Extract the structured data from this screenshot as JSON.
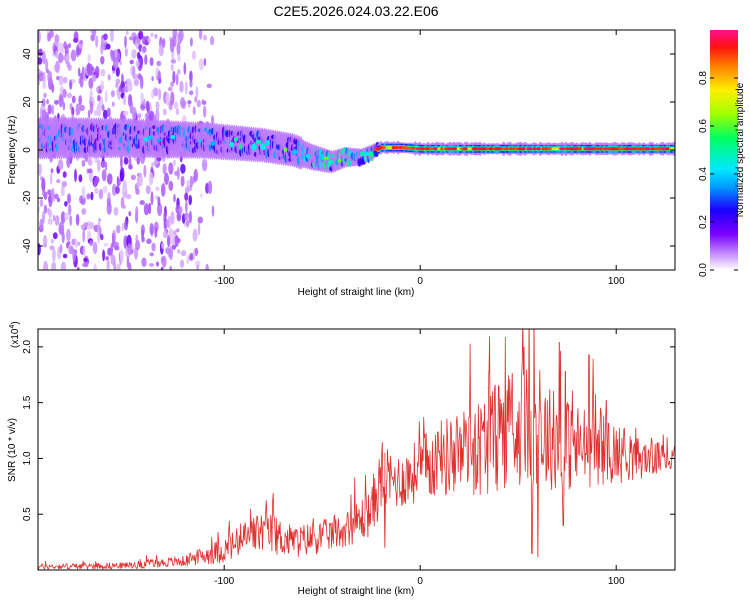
{
  "figure_title": "C2E5.2026.024.03.22.E06",
  "chart_data": [
    {
      "type": "heatmap",
      "title": "C2E5.2026.024.03.22.E06",
      "xlabel": "Height of straight line (km)",
      "ylabel": "Frequency (Hz)",
      "xlim": [
        -195,
        130
      ],
      "ylim": [
        -50,
        50
      ],
      "xticks": [
        -100,
        0,
        100
      ],
      "yticks": [
        -40,
        -20,
        0,
        20,
        40
      ],
      "colorbar": {
        "label": "Normalized spectral amplitude",
        "range": [
          0,
          1
        ],
        "ticks": [
          "0.0",
          "0.2",
          "0.4",
          "0.6",
          "0.8"
        ],
        "tick_values": [
          0.0,
          0.2,
          0.4,
          0.6,
          0.8
        ],
        "colors": [
          "#ffffff",
          "#cc99ff",
          "#7a00ff",
          "#1a00ff",
          "#00a0ff",
          "#00e8ff",
          "#00ff60",
          "#a0ff00",
          "#ffee00",
          "#ff8000",
          "#ff1010",
          "#ff1090"
        ]
      },
      "band_center_hz": [
        [
          -195,
          5
        ],
        [
          -150,
          5
        ],
        [
          -110,
          4
        ],
        [
          -80,
          2
        ],
        [
          -65,
          0
        ],
        [
          -55,
          -3
        ],
        [
          -45,
          -5
        ],
        [
          -38,
          -3
        ],
        [
          -30,
          -3
        ],
        [
          -25,
          -1
        ],
        [
          -20,
          1
        ],
        [
          -10,
          1
        ],
        [
          0,
          0.5
        ],
        [
          50,
          0.5
        ],
        [
          130,
          0.5
        ]
      ],
      "noise_region_km": [
        -195,
        -125
      ],
      "narrowband_start_km": -22,
      "peak_amplitude": 1.0
    },
    {
      "type": "line",
      "xlabel": "Height of straight line (km)",
      "ylabel": "SNR (10 * v/v)",
      "y_multiplier": "(x10^4)",
      "xlim": [
        -195,
        130
      ],
      "ylim": [
        0,
        21600
      ],
      "xticks": [
        -100,
        0,
        100
      ],
      "yticks": [
        5000,
        10000,
        15000,
        20000
      ],
      "ytick_labels": [
        "0.5",
        "1.0",
        "1.5",
        "2.0"
      ],
      "series": [
        {
          "name": "SNR",
          "color": "#e03030",
          "envelope": [
            [
              -195,
              300,
              250
            ],
            [
              -150,
              400,
              300
            ],
            [
              -120,
              800,
              500
            ],
            [
              -100,
              1800,
              1200
            ],
            [
              -80,
              3500,
              2000
            ],
            [
              -65,
              2500,
              1500
            ],
            [
              -50,
              3000,
              1500
            ],
            [
              -40,
              3500,
              1500
            ],
            [
              -30,
              4500,
              2000
            ],
            [
              -25,
              5500,
              2500
            ],
            [
              -20,
              8000,
              3000
            ],
            [
              -10,
              8000,
              2500
            ],
            [
              0,
              9000,
              3000
            ],
            [
              10,
              10000,
              3500
            ],
            [
              20,
              10500,
              4000
            ],
            [
              30,
              11000,
              4500
            ],
            [
              40,
              12000,
              5000
            ],
            [
              50,
              13000,
              5500
            ],
            [
              60,
              12500,
              5000
            ],
            [
              70,
              11500,
              4500
            ],
            [
              80,
              11000,
              4000
            ],
            [
              90,
              11000,
              3500
            ],
            [
              100,
              10500,
              2800
            ],
            [
              110,
              10000,
              2000
            ],
            [
              120,
              10000,
              1500
            ],
            [
              130,
              10000,
              1200
            ]
          ],
          "peaks": [
            [
              -99,
              2300
            ],
            [
              -85,
              4600
            ],
            [
              -78,
              3700
            ],
            [
              -61,
              3800
            ],
            [
              -25,
              6300
            ],
            [
              -18,
              10500
            ],
            [
              -17,
              8000
            ],
            [
              -4,
              8700
            ],
            [
              10,
              10200
            ],
            [
              20,
              12200
            ],
            [
              25,
              13700
            ],
            [
              35,
              17800
            ],
            [
              40,
              16500
            ],
            [
              46,
              15200
            ],
            [
              47,
              17600
            ],
            [
              52,
              18400
            ],
            [
              53,
              20000
            ],
            [
              58,
              21600
            ],
            [
              61,
              17900
            ],
            [
              68,
              16000
            ],
            [
              71,
              20400
            ],
            [
              74,
              17800
            ],
            [
              86,
              19300
            ],
            [
              92,
              14500
            ],
            [
              95,
              15200
            ],
            [
              110,
              12700
            ],
            [
              118,
              11800
            ],
            [
              124,
              12100
            ]
          ],
          "troughs": [
            [
              57,
              1500
            ],
            [
              60,
              1200
            ],
            [
              73,
              4000
            ],
            [
              -18,
              2000
            ]
          ]
        }
      ]
    }
  ]
}
